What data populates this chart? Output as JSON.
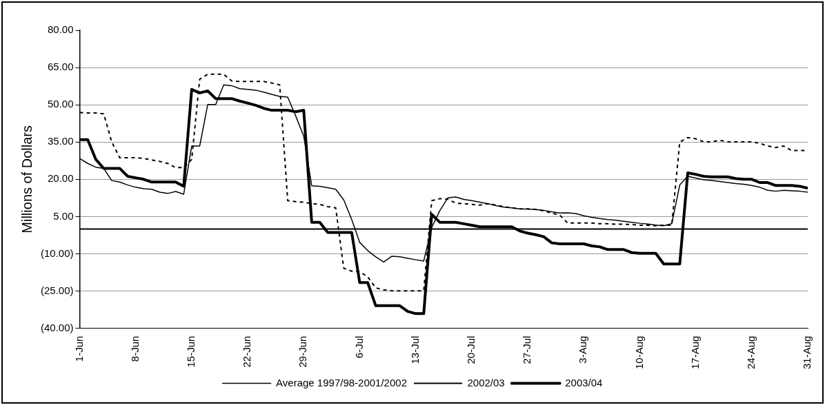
{
  "chart_data": {
    "type": "line",
    "ylabel": "Millions of Dollars",
    "categories": [
      "1-Jun",
      null,
      null,
      null,
      null,
      null,
      null,
      "8-Jun",
      null,
      null,
      null,
      null,
      null,
      null,
      "15-Jun",
      null,
      null,
      null,
      null,
      null,
      null,
      "22-Jun",
      null,
      null,
      null,
      null,
      null,
      null,
      "29-Jun",
      null,
      null,
      null,
      null,
      null,
      null,
      "6-Jul",
      null,
      null,
      null,
      null,
      null,
      null,
      "13-Jul",
      null,
      null,
      null,
      null,
      null,
      null,
      "20-Jul",
      null,
      null,
      null,
      null,
      null,
      null,
      "27-Jul",
      null,
      null,
      null,
      null,
      null,
      null,
      "3-Aug",
      null,
      null,
      null,
      null,
      null,
      null,
      "10-Aug",
      null,
      null,
      null,
      null,
      null,
      null,
      "17-Aug",
      null,
      null,
      null,
      null,
      null,
      null,
      "24-Aug",
      null,
      null,
      null,
      null,
      null,
      null,
      "31-Aug"
    ],
    "series": [
      {
        "name": "Average 1997/98-2001/2002",
        "color": "#000000",
        "line_style": "solid",
        "values": [
          28.4,
          26.4,
          24.9,
          24.4,
          19.5,
          18.9,
          17.7,
          16.8,
          16.2,
          16,
          14.8,
          14.3,
          15.1,
          14,
          33.4,
          33.4,
          50.1,
          50.1,
          58,
          57.7,
          56.5,
          56.2,
          55.9,
          55.1,
          54.2,
          53.4,
          53.1,
          45.5,
          37.4,
          17.4,
          17.2,
          16.6,
          16,
          11.7,
          3.8,
          -5.4,
          -8.7,
          -11.2,
          -13.3,
          -11,
          -11.2,
          -11.8,
          -12.4,
          -12.9,
          0.6,
          7.3,
          12.5,
          12.9,
          11.9,
          11.4,
          10.8,
          10.2,
          9.4,
          8.8,
          8.5,
          8.1,
          8,
          7.8,
          7.5,
          6.9,
          6.4,
          6.5,
          6.2,
          5.3,
          4.7,
          4.2,
          3.8,
          3.5,
          3.1,
          2.7,
          2.3,
          2,
          1.6,
          1.3,
          2.1,
          17.7,
          21.2,
          20.5,
          19.8,
          19.5,
          19.1,
          18.7,
          18.3,
          18,
          17.5,
          16.8,
          15.6,
          15.2,
          15.6,
          15.4,
          15.2,
          14.8
        ]
      },
      {
        "name": "2002/03",
        "color": "#000000",
        "line_style": "dashed",
        "values": [
          46.9,
          46.7,
          46.7,
          46.4,
          35.1,
          28.7,
          28.7,
          28.7,
          28.4,
          27.8,
          27.2,
          26.4,
          24.7,
          24.7,
          28,
          60.3,
          62.3,
          62.3,
          62.3,
          59.6,
          59.4,
          59.4,
          59.4,
          59.4,
          58.8,
          58,
          11.4,
          11,
          10.8,
          10.2,
          9.9,
          9,
          8.5,
          -15.8,
          -17,
          -17.2,
          -19.3,
          -23.7,
          -24.5,
          -24.9,
          -24.9,
          -24.9,
          -24.9,
          -24.9,
          11.4,
          12.2,
          12,
          10.4,
          10.2,
          9.9,
          9.6,
          10.2,
          9.6,
          9,
          8.5,
          8.1,
          8.1,
          7.9,
          7.3,
          6.4,
          5.6,
          2.4,
          2.4,
          2.4,
          2.4,
          2.1,
          2.1,
          1.9,
          1.9,
          1.8,
          1.5,
          1.5,
          1.3,
          1.5,
          1.5,
          35,
          36.8,
          36.3,
          35.1,
          35.1,
          35.7,
          35.1,
          35.1,
          35.1,
          35.1,
          34.5,
          33.4,
          32.8,
          33.4,
          31.6,
          31.6,
          31.6
        ]
      },
      {
        "name": "2003/04",
        "color": "#000000",
        "line_style": "solid",
        "values": [
          36,
          36,
          28.1,
          24.4,
          24.4,
          24.4,
          21.2,
          20.6,
          20,
          18.9,
          18.9,
          18.9,
          18.9,
          17.2,
          56.2,
          54.8,
          55.6,
          52.5,
          52.5,
          52.5,
          51.5,
          50.7,
          49.8,
          48.6,
          47.8,
          47.8,
          47.8,
          47.2,
          47.8,
          2.7,
          2.7,
          -1.4,
          -1.4,
          -1.4,
          -1.4,
          -21.6,
          -21.6,
          -30.9,
          -30.9,
          -30.9,
          -30.9,
          -33.2,
          -34.1,
          -34.1,
          5.9,
          2.7,
          2.7,
          2.7,
          2.1,
          1.5,
          0.9,
          0.9,
          0.9,
          0.9,
          0.9,
          -0.8,
          -1.7,
          -2.3,
          -3.1,
          -5.6,
          -6,
          -6,
          -6,
          -6,
          -6.8,
          -7.2,
          -8.3,
          -8.3,
          -8.3,
          -9.5,
          -9.8,
          -9.8,
          -9.8,
          -14.1,
          -14.1,
          -14.1,
          22.6,
          22,
          21.2,
          21,
          21,
          21,
          20.3,
          20,
          20,
          18.7,
          18.7,
          17.5,
          17.5,
          17.5,
          17.2,
          16.4
        ]
      }
    ],
    "ylim": [
      -40,
      80
    ],
    "yticks": [
      {
        "value": -40,
        "label": "(40.00)"
      },
      {
        "value": -25,
        "label": "(25.00)"
      },
      {
        "value": -10,
        "label": "(10.00)"
      },
      {
        "value": 5,
        "label": "5.00"
      },
      {
        "value": 20,
        "label": "20.00"
      },
      {
        "value": 35,
        "label": "35.00"
      },
      {
        "value": 50,
        "label": "50.00"
      },
      {
        "value": 65,
        "label": "65.00"
      },
      {
        "value": 80,
        "label": "80.00"
      }
    ],
    "ref_lines": [
      {
        "axis": "y",
        "value": 0,
        "color": "#000000"
      }
    ],
    "grid": "y",
    "legend": "bottom",
    "marker": "none"
  }
}
